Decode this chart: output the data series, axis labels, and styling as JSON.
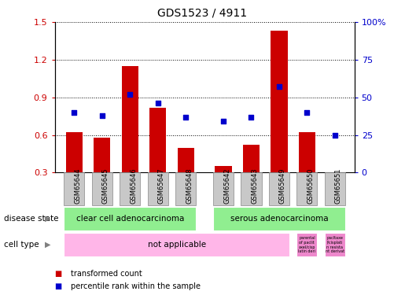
{
  "title": "GDS1523 / 4911",
  "samples": [
    "GSM65644",
    "GSM65645",
    "GSM65646",
    "GSM65647",
    "GSM65648",
    "GSM65642",
    "GSM65643",
    "GSM65649",
    "GSM65650",
    "GSM65651"
  ],
  "bar_values": [
    0.62,
    0.58,
    1.15,
    0.82,
    0.5,
    0.35,
    0.52,
    1.43,
    0.62,
    0.3
  ],
  "dot_values": [
    40,
    38,
    52,
    46,
    37,
    34,
    37,
    57,
    40,
    25
  ],
  "bar_color": "#cc0000",
  "dot_color": "#0000cc",
  "ylim_left": [
    0.3,
    1.5
  ],
  "ylim_right": [
    0,
    100
  ],
  "yticks_left": [
    0.3,
    0.6,
    0.9,
    1.2,
    1.5
  ],
  "yticks_right": [
    0,
    25,
    50,
    75,
    100
  ],
  "disease_state_labels": [
    "clear cell adenocarcinoma",
    "serous adenocarcinoma"
  ],
  "disease_state_color": "#90ee90",
  "cell_type_label_main": "not applicable",
  "cell_type_color_main": "#ffb6e8",
  "cell_type_color_small": "#ee88cc",
  "cell_type_small_text1": "parental\nof paclit\naxel/cisp\nlatin deri",
  "cell_type_small_text2": "pacltaxe\nl/cisplati\nn resista\nnt derivat",
  "bar_width": 0.6,
  "background": "#ffffff",
  "label_disease_state": "disease state",
  "label_cell_type": "cell type",
  "legend_bar": "transformed count",
  "legend_dot": "percentile rank within the sample",
  "sample_bg_color": "#c8c8c8",
  "sample_border_color": "#888888"
}
